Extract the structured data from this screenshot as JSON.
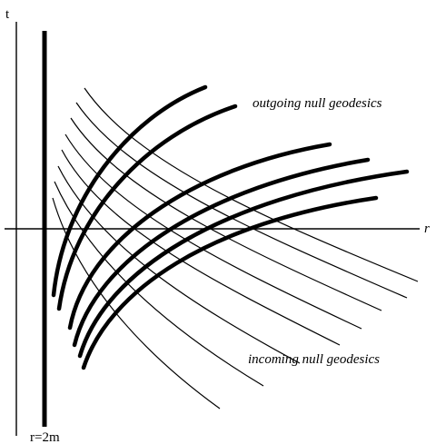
{
  "labels": {
    "t_axis": "t",
    "r_axis": "r",
    "horizon": "r=2m",
    "outgoing": "outgoing null geodesics",
    "incoming": "incoming null geodesics"
  },
  "colors": {
    "stroke": "#000000",
    "background": "#ffffff"
  },
  "geodesics": {
    "outgoing_count": 6,
    "incoming_count": 8
  }
}
